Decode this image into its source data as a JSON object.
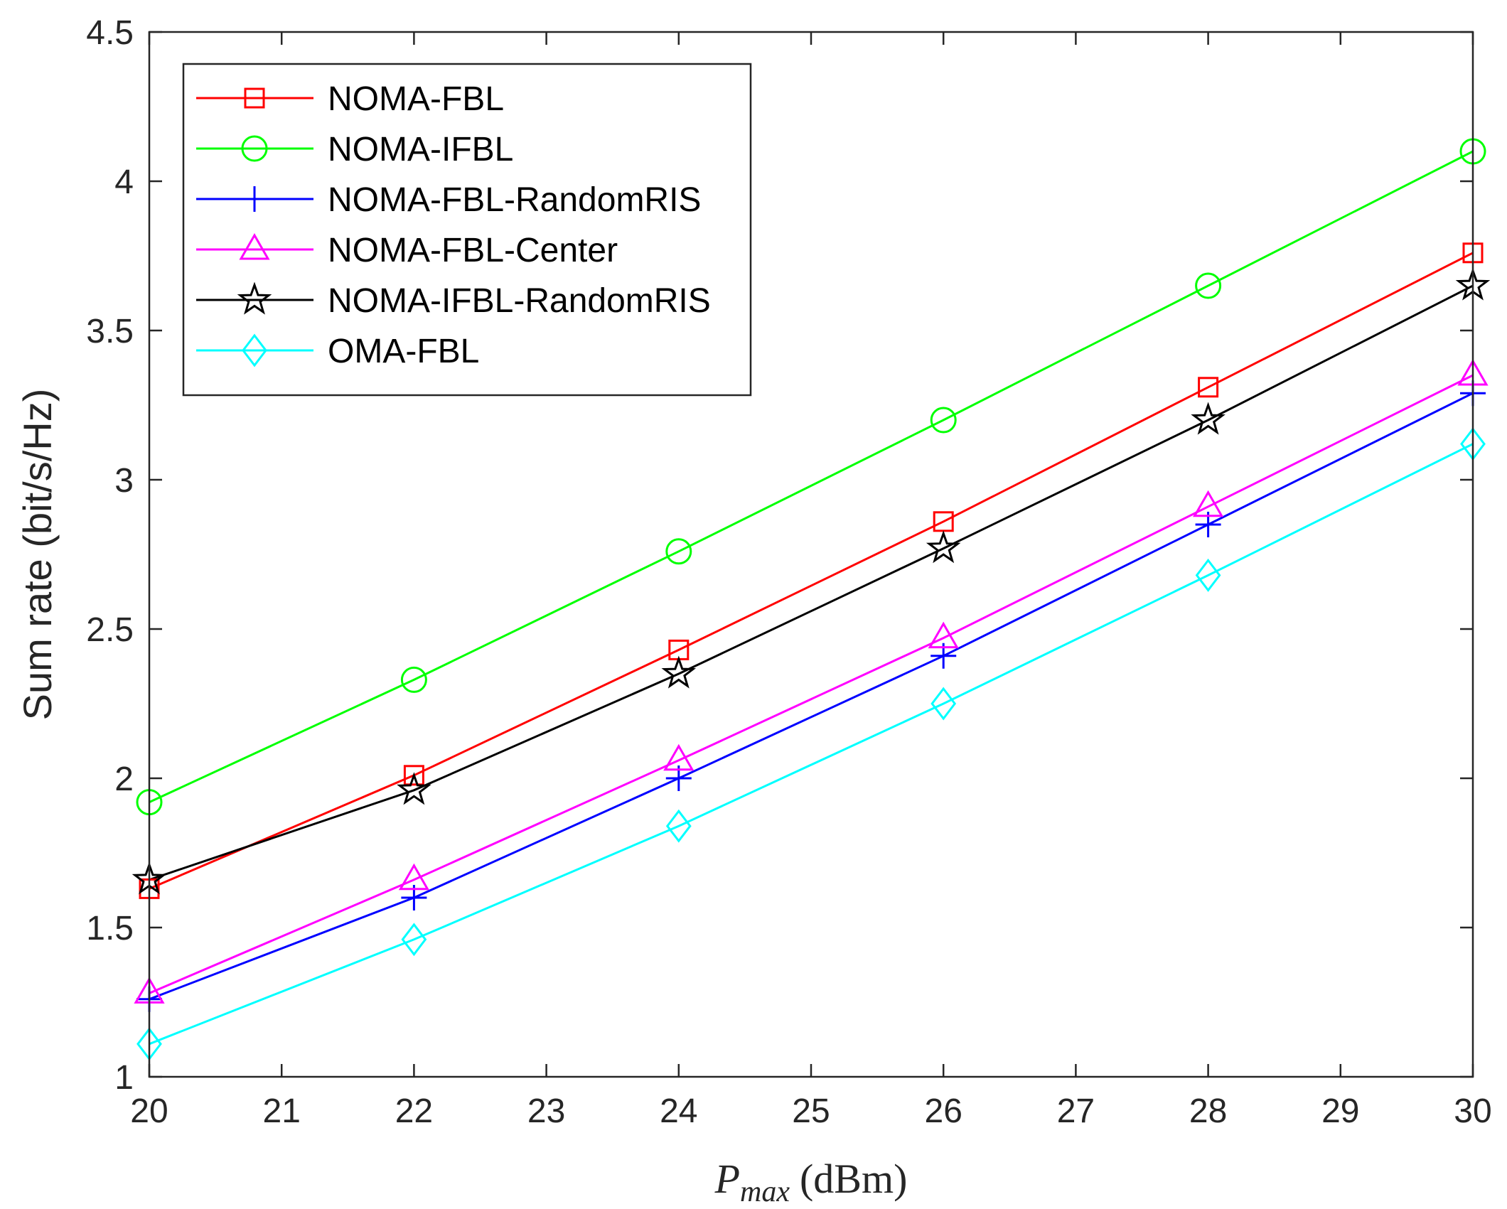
{
  "chart_data": {
    "type": "line",
    "title": "",
    "xlabel_symbol": "P",
    "xlabel_subscript": "max",
    "xlabel_unit": "(dBm)",
    "ylabel": "Sum rate (bit/s/Hz)",
    "xlim": [
      20,
      30
    ],
    "ylim": [
      1,
      4.5
    ],
    "xticks": [
      "20",
      "21",
      "22",
      "23",
      "24",
      "25",
      "26",
      "27",
      "28",
      "29",
      "30"
    ],
    "yticks": [
      "1",
      "1.5",
      "2",
      "2.5",
      "3",
      "3.5",
      "4",
      "4.5"
    ],
    "grid": false,
    "legend_position": "top-left",
    "x": [
      20,
      22,
      24,
      26,
      28,
      30
    ],
    "series": [
      {
        "name": "NOMA-FBL",
        "color": "#ff0000",
        "marker": "square",
        "values": [
          1.63,
          2.01,
          2.43,
          2.86,
          3.31,
          3.76
        ]
      },
      {
        "name": "NOMA-IFBL",
        "color": "#00ff00",
        "marker": "circle",
        "values": [
          1.92,
          2.33,
          2.76,
          3.2,
          3.65,
          4.1
        ]
      },
      {
        "name": "NOMA-FBL-RandomRIS",
        "color": "#0000ff",
        "marker": "plus",
        "values": [
          1.26,
          1.6,
          2.0,
          2.41,
          2.85,
          3.29
        ]
      },
      {
        "name": "NOMA-FBL-Center",
        "color": "#ff00ff",
        "marker": "triangle",
        "values": [
          1.28,
          1.66,
          2.06,
          2.47,
          2.91,
          3.35
        ]
      },
      {
        "name": "NOMA-IFBL-RandomRIS",
        "color": "#000000",
        "marker": "star",
        "values": [
          1.66,
          1.96,
          2.35,
          2.77,
          3.2,
          3.65
        ]
      },
      {
        "name": "OMA-FBL",
        "color": "#00ffff",
        "marker": "diamond",
        "values": [
          1.11,
          1.46,
          1.84,
          2.25,
          2.68,
          3.12
        ]
      }
    ]
  }
}
